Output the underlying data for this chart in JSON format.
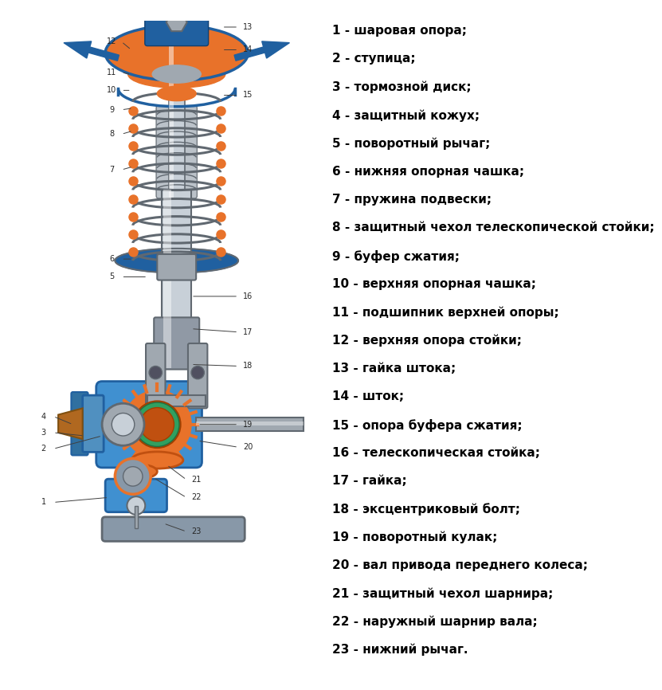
{
  "legend_items": [
    "1 - шаровая опора;",
    "2 - ступица;",
    "3 - тормозной диск;",
    "4 - защитный кожух;",
    "5 - поворотный рычаг;",
    "6 - нижняя опорная чашка;",
    "7 - пружина подвески;",
    "8 - защитный чехол телескопической стойки;",
    "9 - буфер сжатия;",
    "10 - верхняя опорная чашка;",
    "11 - подшипник верхней опоры;",
    "12 - верхняя опора стойки;",
    "13 - гайка штока;",
    "14 - шток;",
    "15 - опора буфера сжатия;",
    "16 - телескопическая стойка;",
    "17 - гайка;",
    "18 - эксцентриковый болт;",
    "19 - поворотный кулак;",
    "20 - вал привода переднего колеса;",
    "21 - защитный чехол шарнира;",
    "22 - наружный шарнир вала;",
    "23 - нижний рычаг."
  ],
  "bg_color": "#ffffff",
  "text_color": "#000000",
  "text_fontsize": 11,
  "fig_width": 7.83,
  "fig_height": 8.46
}
